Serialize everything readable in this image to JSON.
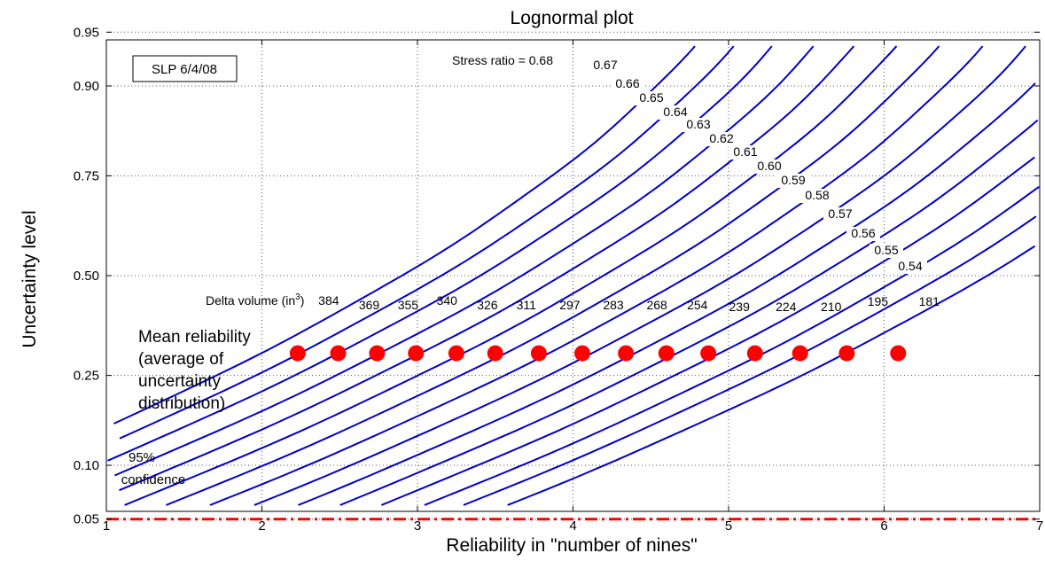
{
  "chart_data": {
    "type": "line",
    "title": "Lognormal plot",
    "xlabel": "Reliability in \"number of nines\"",
    "ylabel": "Uncertainty level",
    "xlim": [
      1,
      7
    ],
    "x_ticks": [
      "1",
      "2",
      "3",
      "4",
      "5",
      "6",
      "7"
    ],
    "y_ticks": [
      {
        "p": 0.05,
        "label": "0.05"
      },
      {
        "p": 0.1,
        "label": "0.10"
      },
      {
        "p": 0.25,
        "label": "0.25"
      },
      {
        "p": 0.5,
        "label": "0.50"
      },
      {
        "p": 0.75,
        "label": "0.75"
      },
      {
        "p": 0.9,
        "label": "0.90"
      },
      {
        "p": 0.95,
        "label": "0.95"
      }
    ],
    "y_scale": "lognormal probability",
    "grid": true,
    "stamp": "SLP 6/4/08",
    "stress_ratio_prefix": "Stress ratio = ",
    "series": [
      {
        "stress_ratio": "0.68",
        "x_at_median": 2.9
      },
      {
        "stress_ratio": "0.67",
        "x_at_median": 3.15
      },
      {
        "stress_ratio": "0.66",
        "x_at_median": 3.4
      },
      {
        "stress_ratio": "0.65",
        "x_at_median": 3.67
      },
      {
        "stress_ratio": "0.64",
        "x_at_median": 3.93
      },
      {
        "stress_ratio": "0.63",
        "x_at_median": 4.2
      },
      {
        "stress_ratio": "0.62",
        "x_at_median": 4.47
      },
      {
        "stress_ratio": "0.61",
        "x_at_median": 4.75
      },
      {
        "stress_ratio": "0.60",
        "x_at_median": 5.03
      },
      {
        "stress_ratio": "0.59",
        "x_at_median": 5.31
      },
      {
        "stress_ratio": "0.58",
        "x_at_median": 5.58
      },
      {
        "stress_ratio": "0.57",
        "x_at_median": 5.85
      },
      {
        "stress_ratio": "0.56",
        "x_at_median": 6.13
      },
      {
        "stress_ratio": "0.55",
        "x_at_median": 6.38
      },
      {
        "stress_ratio": "0.54",
        "x_at_median": 6.66
      }
    ],
    "curve_shape": {
      "x_per_sigma": 1.6,
      "x_per_sigma_sq": 0.25
    },
    "mean_reliability": {
      "label_lines": [
        "Mean reliability",
        "(average of",
        "uncertainty",
        "distribution)"
      ],
      "y": 0.3,
      "points": [
        {
          "x": 2.23,
          "delta_volume": "384"
        },
        {
          "x": 2.49,
          "delta_volume": "369"
        },
        {
          "x": 2.74,
          "delta_volume": "355"
        },
        {
          "x": 2.99,
          "delta_volume": "340"
        },
        {
          "x": 3.25,
          "delta_volume": "326"
        },
        {
          "x": 3.5,
          "delta_volume": "311"
        },
        {
          "x": 3.78,
          "delta_volume": "297"
        },
        {
          "x": 4.06,
          "delta_volume": "283"
        },
        {
          "x": 4.34,
          "delta_volume": "268"
        },
        {
          "x": 4.6,
          "delta_volume": "254"
        },
        {
          "x": 4.87,
          "delta_volume": "239"
        },
        {
          "x": 5.17,
          "delta_volume": "224"
        },
        {
          "x": 5.46,
          "delta_volume": "210"
        },
        {
          "x": 5.76,
          "delta_volume": "195"
        },
        {
          "x": 6.09,
          "delta_volume": "181"
        }
      ],
      "point_color": "#ff0000"
    },
    "delta_volume_label": "Delta volume (in",
    "delta_volume_superscript": "3",
    "delta_volume_label_close": ")",
    "confidence_line": {
      "y": 0.05,
      "label_top": "95%",
      "label_bottom": "confidence",
      "color": "#ff0000"
    },
    "curve_color": "#0000cc"
  }
}
